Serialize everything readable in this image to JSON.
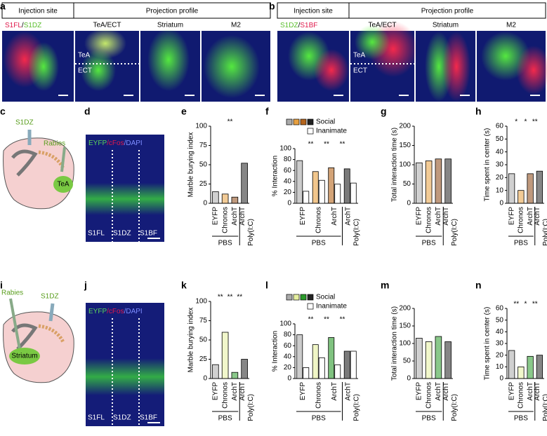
{
  "image_panels": [
    {
      "letter": "a",
      "injection_header": "Injection site",
      "projection_header": "Projection profile",
      "injection_label": [
        {
          "text": "S1FL",
          "color": "#e0194b"
        },
        {
          "text": "/",
          "color": "#000000"
        },
        {
          "text": "S1DZ",
          "color": "#5bbf2e"
        }
      ],
      "regions": [
        "TeA/ECT",
        "Striatum",
        "M2"
      ],
      "overlay": [
        "TeA",
        "ECT"
      ]
    },
    {
      "letter": "b",
      "injection_header": "Injection site",
      "projection_header": "Projection profile",
      "injection_label": [
        {
          "text": "S1DZ",
          "color": "#5bbf2e"
        },
        {
          "text": "/",
          "color": "#000000"
        },
        {
          "text": "S1BF",
          "color": "#e0194b"
        }
      ],
      "regions": [
        "TeA/ECT",
        "Striatum",
        "M2"
      ],
      "overlay": [
        "TeA",
        "ECT"
      ]
    }
  ],
  "diagrams": [
    {
      "letter": "c",
      "labels": [
        "S1DZ",
        "Rabies",
        "TeA"
      ]
    },
    {
      "letter": "i",
      "labels": [
        "Rabies",
        "S1DZ",
        "Striatum"
      ]
    }
  ],
  "micrographs": [
    {
      "letter": "d",
      "stain": [
        {
          "text": "EYFP",
          "color": "#5bd15b"
        },
        {
          "text": "/cFos",
          "color": "#e0194b"
        },
        {
          "text": "/DAPI",
          "color": "#7c8cff"
        }
      ],
      "regions": [
        "S1FL",
        "S1DZ",
        "S1BF"
      ]
    },
    {
      "letter": "j",
      "stain": [
        {
          "text": "EYFP",
          "color": "#5bd15b"
        },
        {
          "text": "/cFos",
          "color": "#e0194b"
        },
        {
          "text": "/DAPI",
          "color": "#7c8cff"
        }
      ],
      "regions": [
        "S1FL",
        "S1DZ",
        "S1BF"
      ]
    }
  ],
  "chart_data": [
    {
      "type": "bar",
      "panel_letter": "e",
      "y_label": "Marble burying index",
      "categories": [
        "EYFP",
        "Chronos",
        "ArchT",
        "ArchT"
      ],
      "group_labels": [
        "PBS",
        "Poly(I:C)"
      ],
      "values": [
        15,
        12,
        8,
        52
      ],
      "colors": [
        "#aaaaaa",
        "#e8a040",
        "#8b4513",
        "#222222"
      ],
      "ylim": [
        0,
        100
      ],
      "yticks": [
        0,
        25,
        50,
        75,
        100
      ],
      "annotations": [
        "**"
      ]
    },
    {
      "type": "grouped-bar",
      "panel_letter": "f",
      "y_label": "% Interaction",
      "categories": [
        "EYFP",
        "Chronos",
        "ArchT",
        "ArchT"
      ],
      "group_labels": [
        "PBS",
        "Poly(I:C)"
      ],
      "series": [
        {
          "name": "Social",
          "colors": [
            "#aaaaaa",
            "#e8a040",
            "#b5651d",
            "#222222"
          ],
          "values": [
            78,
            58,
            65,
            63
          ]
        },
        {
          "name": "Inanimate",
          "colors": [
            "#ffffff",
            "#ffffff",
            "#ffffff",
            "#ffffff"
          ],
          "values": [
            22,
            42,
            35,
            37
          ]
        }
      ],
      "ylim": [
        0,
        100
      ],
      "yticks": [
        0,
        20,
        40,
        60,
        80,
        100
      ],
      "annotations": [
        "**",
        "**",
        "**"
      ]
    },
    {
      "type": "bar",
      "panel_letter": "g",
      "y_label": "Total interaction time (s)",
      "categories": [
        "EYFP",
        "Chronos",
        "ArchT",
        "ArchT"
      ],
      "group_labels": [
        "PBS",
        "Poly(I:C)"
      ],
      "values": [
        105,
        110,
        115,
        115
      ],
      "colors": [
        "#aaaaaa",
        "#e8a040",
        "#8b4513",
        "#222222"
      ],
      "ylim": [
        0,
        200
      ],
      "yticks": [
        0,
        50,
        100,
        150,
        200
      ],
      "annotations": []
    },
    {
      "type": "bar",
      "panel_letter": "h",
      "y_label": "Time spent in center (s)",
      "categories": [
        "EYFP",
        "Chronos",
        "ArchT",
        "ArchT"
      ],
      "group_labels": [
        "PBS",
        "Poly(I:C)"
      ],
      "values": [
        23,
        10,
        23,
        25
      ],
      "colors": [
        "#aaaaaa",
        "#e8a040",
        "#8b4513",
        "#222222"
      ],
      "ylim": [
        0,
        60
      ],
      "yticks": [
        0,
        10,
        20,
        30,
        40,
        50,
        60
      ],
      "annotations": [
        "*",
        "*",
        "**"
      ]
    },
    {
      "type": "bar",
      "panel_letter": "k",
      "y_label": "Marble burying index",
      "categories": [
        "EYFP",
        "Chronos",
        "ArchT",
        "ArchT"
      ],
      "group_labels": [
        "PBS",
        "Poly(I:C)"
      ],
      "values": [
        18,
        60,
        8,
        25
      ],
      "colors": [
        "#aaaaaa",
        "#e6f0a0",
        "#2a9a2a",
        "#222222"
      ],
      "ylim": [
        0,
        100
      ],
      "yticks": [
        0,
        25,
        50,
        75,
        100
      ],
      "annotations": [
        "**",
        "**",
        "**"
      ]
    },
    {
      "type": "grouped-bar",
      "panel_letter": "l",
      "y_label": "% Interaction",
      "categories": [
        "EYFP",
        "Chronos",
        "ArchT",
        "ArchT"
      ],
      "group_labels": [
        "PBS",
        "Poly(I:C)"
      ],
      "series": [
        {
          "name": "Social",
          "colors": [
            "#aaaaaa",
            "#e6f0a0",
            "#2a9a2a",
            "#222222"
          ],
          "values": [
            80,
            62,
            75,
            50
          ]
        },
        {
          "name": "Inanimate",
          "colors": [
            "#ffffff",
            "#ffffff",
            "#ffffff",
            "#ffffff"
          ],
          "values": [
            20,
            38,
            25,
            50
          ]
        }
      ],
      "ylim": [
        0,
        100
      ],
      "yticks": [
        0,
        20,
        40,
        60,
        80,
        100
      ],
      "annotations": [
        "**",
        "**",
        "**"
      ]
    },
    {
      "type": "bar",
      "panel_letter": "m",
      "y_label": "Total interaction time (s)",
      "categories": [
        "EYFP",
        "Chronos",
        "ArchT",
        "ArchT"
      ],
      "group_labels": [
        "PBS",
        "Poly(I:C)"
      ],
      "values": [
        115,
        105,
        120,
        105
      ],
      "colors": [
        "#aaaaaa",
        "#e6f0a0",
        "#2a9a2a",
        "#222222"
      ],
      "ylim": [
        0,
        200
      ],
      "yticks": [
        0,
        50,
        100,
        150,
        200
      ],
      "annotations": []
    },
    {
      "type": "bar",
      "panel_letter": "n",
      "y_label": "Time spent in center (s)",
      "categories": [
        "EYFP",
        "Chronos",
        "ArchT",
        "ArchT"
      ],
      "group_labels": [
        "PBS",
        "Poly(I:C)"
      ],
      "values": [
        24,
        10,
        19,
        20
      ],
      "colors": [
        "#aaaaaa",
        "#e6f0a0",
        "#2a9a2a",
        "#222222"
      ],
      "ylim": [
        0,
        60
      ],
      "yticks": [
        0,
        10,
        20,
        30,
        40,
        50,
        60
      ],
      "annotations": [
        "**",
        "*",
        "**"
      ]
    }
  ]
}
